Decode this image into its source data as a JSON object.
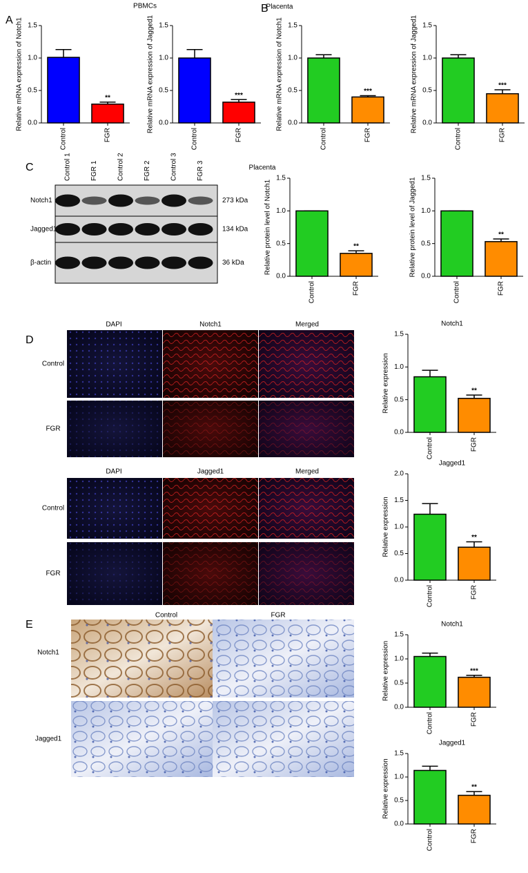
{
  "panel_labels": [
    "A",
    "B",
    "C",
    "D",
    "E"
  ],
  "headers": {
    "pbmcs": "PBMCs",
    "placenta_b": "Placenta",
    "placenta_c": "Placenta"
  },
  "western_blot": {
    "columns": [
      "Control 1",
      "FGR 1",
      "Control 2",
      "FGR 2",
      "Control 3",
      "FGR 3"
    ],
    "rows": [
      {
        "label": "Notch1",
        "size": "273 kDa"
      },
      {
        "label": "Jagged1",
        "size": "134 kDa"
      },
      {
        "label": "β-actin",
        "size": "36 kDa"
      }
    ]
  },
  "immunofluorescence": {
    "blocks": [
      {
        "columns": [
          "DAPI",
          "Notch1",
          "Merged"
        ],
        "rows": [
          "Control",
          "FGR"
        ]
      },
      {
        "columns": [
          "DAPI",
          "Jagged1",
          "Merged"
        ],
        "rows": [
          "Control",
          "FGR"
        ]
      }
    ]
  },
  "ihc": {
    "columns": [
      "Control",
      "FGR"
    ],
    "rows": [
      "Notch1",
      "Jagged1"
    ]
  },
  "chart_data": [
    {
      "type": "bar",
      "ylabel": "Relative mRNA expression of Notch1",
      "categories": [
        "Control",
        "FGR"
      ],
      "values": [
        1.01,
        0.29
      ],
      "errors": [
        0.12,
        0.03
      ],
      "colors": [
        "#0000ff",
        "#ff0000"
      ],
      "annotation": "**",
      "ylim": [
        0,
        1.5
      ],
      "yticks": [
        {
          "value": 0,
          "label": "0.0"
        },
        0.5,
        {
          "value": 1,
          "label": "1.0"
        },
        1.5
      ]
    },
    {
      "type": "bar",
      "ylabel": "Relative mRNA expression of Jagged1",
      "categories": [
        "Control",
        "FGR"
      ],
      "values": [
        1.0,
        0.32
      ],
      "errors": [
        0.13,
        0.04
      ],
      "colors": [
        "#0000ff",
        "#ff0000"
      ],
      "annotation": "***",
      "ylim": [
        0,
        1.5
      ],
      "yticks": [
        {
          "value": 0,
          "label": "0.0"
        },
        0.5,
        {
          "value": 1,
          "label": "1.0"
        },
        1.5
      ]
    },
    {
      "type": "bar",
      "ylabel": "Relative mRNA expression of Notch1",
      "categories": [
        "Control",
        "FGR"
      ],
      "values": [
        1.0,
        0.4
      ],
      "errors": [
        0.05,
        0.02
      ],
      "colors": [
        "#22cc22",
        "#ff8c00"
      ],
      "annotation": "***",
      "ylim": [
        0,
        1.5
      ],
      "yticks": [
        {
          "value": 0,
          "label": "0.0"
        },
        0.5,
        {
          "value": 1,
          "label": "1.0"
        },
        1.5
      ]
    },
    {
      "type": "bar",
      "ylabel": "Relative mRNA expression of Jagged1",
      "categories": [
        "Control",
        "FGR"
      ],
      "values": [
        1.0,
        0.45
      ],
      "errors": [
        0.05,
        0.06
      ],
      "colors": [
        "#22cc22",
        "#ff8c00"
      ],
      "annotation": "***",
      "ylim": [
        0,
        1.5
      ],
      "yticks": [
        {
          "value": 0,
          "label": "0.0"
        },
        0.5,
        {
          "value": 1,
          "label": "1.0"
        },
        1.5
      ]
    },
    {
      "type": "bar",
      "ylabel": "Relative protein level of Notch1",
      "categories": [
        "Control",
        "FGR"
      ],
      "values": [
        1.0,
        0.35
      ],
      "errors": [
        0,
        0.04
      ],
      "colors": [
        "#22cc22",
        "#ff8c00"
      ],
      "annotation": "**",
      "ylim": [
        0,
        1.5
      ],
      "yticks": [
        {
          "value": 0,
          "label": "0.0"
        },
        0.5,
        {
          "value": 1,
          "label": "1.0"
        },
        1.5
      ]
    },
    {
      "type": "bar",
      "ylabel": "Relative protein level of Jagged1",
      "categories": [
        "Control",
        "FGR"
      ],
      "values": [
        1.0,
        0.53
      ],
      "errors": [
        0,
        0.04
      ],
      "colors": [
        "#22cc22",
        "#ff8c00"
      ],
      "annotation": "**",
      "ylim": [
        0,
        1.5
      ],
      "yticks": [
        {
          "value": 0,
          "label": "0.0"
        },
        0.5,
        {
          "value": 1,
          "label": "1.0"
        },
        1.5
      ]
    },
    {
      "type": "bar",
      "title": "Notch1",
      "ylabel": "Relative expression",
      "categories": [
        "Control",
        "FGR"
      ],
      "values": [
        0.85,
        0.52
      ],
      "errors": [
        0.1,
        0.05
      ],
      "colors": [
        "#22cc22",
        "#ff8c00"
      ],
      "annotation": "**",
      "ylim": [
        0,
        1.5
      ],
      "yticks": [
        {
          "value": 0,
          "label": "0.0"
        },
        0.5,
        {
          "value": 1,
          "label": "1.0"
        },
        1.5
      ]
    },
    {
      "type": "bar",
      "title": "Jagged1",
      "ylabel": "Relative expression",
      "categories": [
        "Control",
        "FGR"
      ],
      "values": [
        1.24,
        0.62
      ],
      "errors": [
        0.2,
        0.1
      ],
      "colors": [
        "#22cc22",
        "#ff8c00"
      ],
      "annotation": "**",
      "ylim": [
        0,
        2
      ],
      "yticks": [
        {
          "value": 0,
          "label": "0.0"
        },
        0.5,
        {
          "value": 1,
          "label": "1.0"
        },
        1.5,
        {
          "value": 2,
          "label": "2.0"
        }
      ]
    },
    {
      "type": "bar",
      "title": "Notch1",
      "ylabel": "Relative expression",
      "categories": [
        "Control",
        "FGR"
      ],
      "values": [
        1.05,
        0.62
      ],
      "errors": [
        0.07,
        0.04
      ],
      "colors": [
        "#22cc22",
        "#ff8c00"
      ],
      "annotation": "***",
      "ylim": [
        0,
        1.5
      ],
      "yticks": [
        {
          "value": 0,
          "label": "0.0"
        },
        0.5,
        {
          "value": 1,
          "label": "1.0"
        },
        1.5
      ]
    },
    {
      "type": "bar",
      "title": "Jagged1",
      "ylabel": "Relative expression",
      "categories": [
        "Control",
        "FGR"
      ],
      "values": [
        1.14,
        0.61
      ],
      "errors": [
        0.09,
        0.08
      ],
      "colors": [
        "#22cc22",
        "#ff8c00"
      ],
      "annotation": "**",
      "ylim": [
        0,
        1.5
      ],
      "yticks": [
        {
          "value": 0,
          "label": "0.0"
        },
        0.5,
        {
          "value": 1,
          "label": "1.0"
        },
        1.5
      ]
    }
  ]
}
